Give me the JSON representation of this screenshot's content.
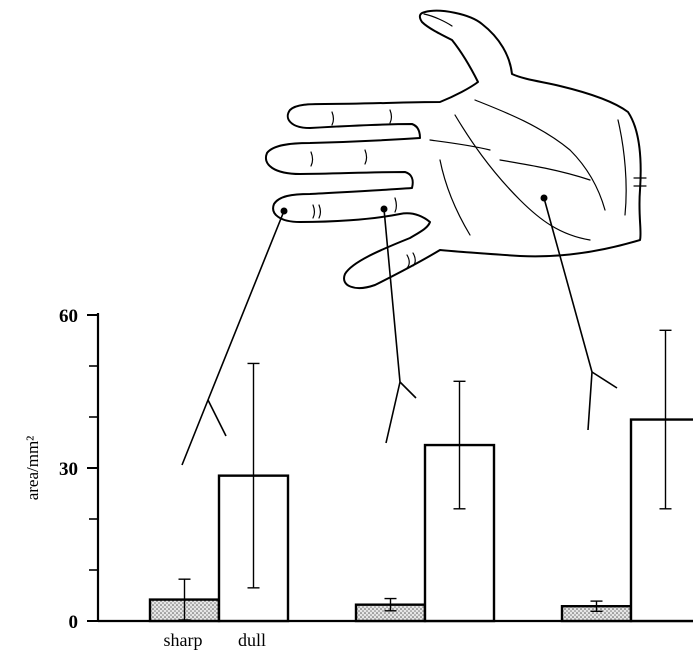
{
  "chart_data": {
    "type": "bar",
    "ylabel": "area/mm²",
    "ylim": [
      0,
      60
    ],
    "yticks": [
      0,
      30,
      60
    ],
    "yminor_ticks": [
      10,
      20,
      40,
      50
    ],
    "groups": [
      "fingertip",
      "finger base",
      "palm"
    ],
    "category_labels": [
      "sharp",
      "dull"
    ],
    "series": [
      {
        "name": "sharp",
        "fill": "#d8d8d8",
        "values": [
          4.2,
          3.2,
          2.9
        ],
        "error": [
          4.0,
          1.2,
          1.0
        ]
      },
      {
        "name": "dull",
        "fill": "#ffffff",
        "values": [
          28.5,
          34.5,
          39.5
        ],
        "error": [
          22.0,
          12.5,
          17.5
        ]
      }
    ],
    "grid": false,
    "legend": "none"
  }
}
